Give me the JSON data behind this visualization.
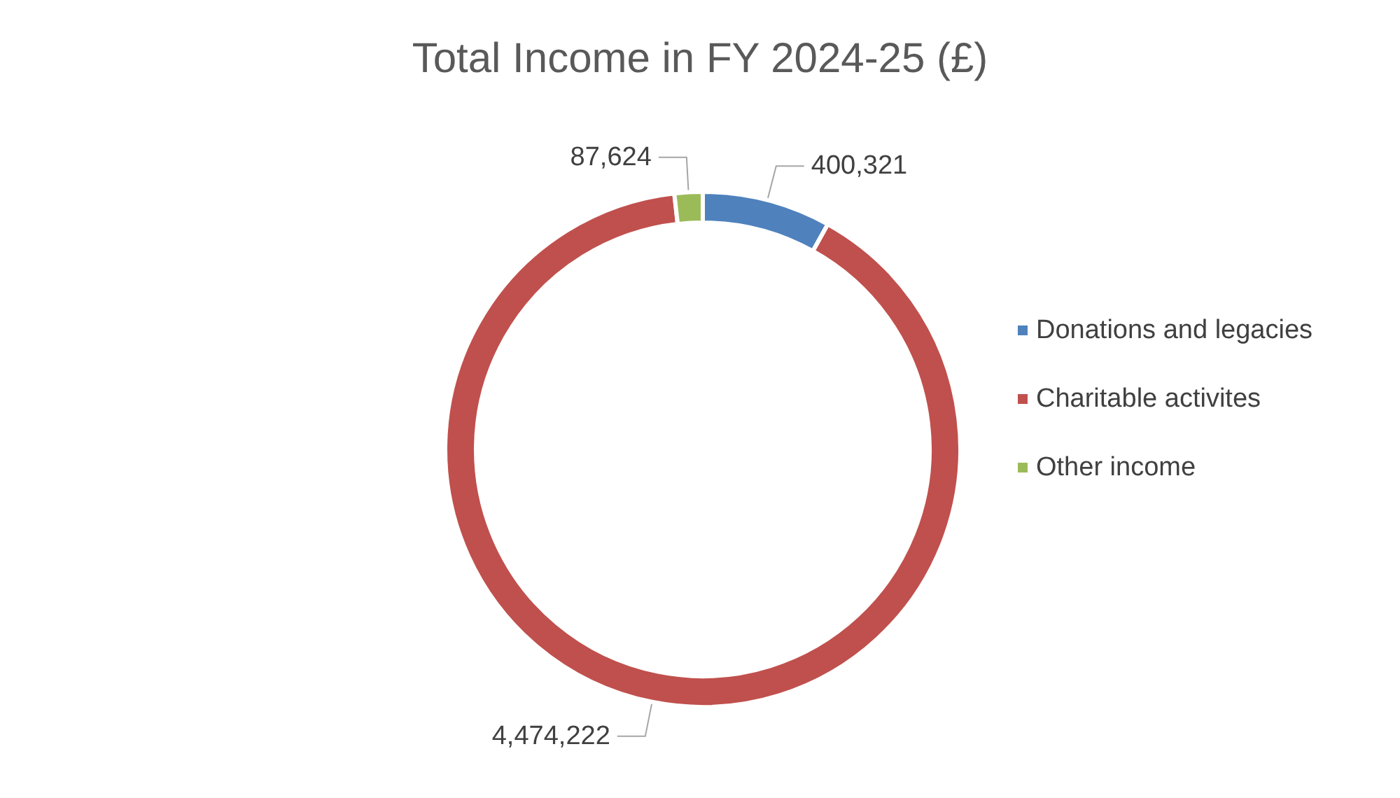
{
  "chart_data": {
    "type": "donut",
    "title": "Total Income in FY 2024-25 (£)",
    "categories": [
      "Donations and legacies",
      "Charitable activites",
      "Other income"
    ],
    "values": [
      400321,
      4474222,
      87624
    ],
    "colors": [
      "#4f81bd",
      "#c0504d",
      "#9bbb59"
    ],
    "value_labels": [
      "400,321",
      "4,474,222",
      "87,624"
    ],
    "legend": "right"
  }
}
